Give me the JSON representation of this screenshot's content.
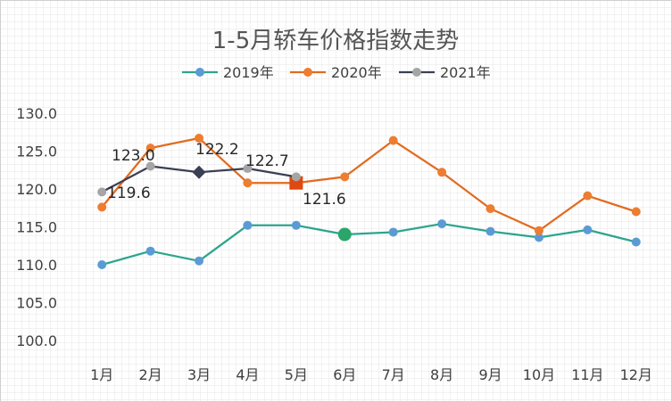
{
  "chart_data": {
    "type": "line",
    "title": "1-5月轿车价格指数走势",
    "categories": [
      "1月",
      "2月",
      "3月",
      "4月",
      "5月",
      "6月",
      "7月",
      "8月",
      "9月",
      "10月",
      "11月",
      "12月"
    ],
    "ylim": [
      100,
      130
    ],
    "yticks": [
      "100.0",
      "105.0",
      "110.0",
      "115.0",
      "120.0",
      "125.0",
      "130.0"
    ],
    "grid": true,
    "legend_position": "top",
    "series": [
      {
        "name": "2019年",
        "color": "#2ca58d",
        "marker_color": "#5b9bd5",
        "values": [
          110.0,
          111.8,
          110.5,
          115.2,
          115.2,
          114.0,
          114.3,
          115.4,
          114.4,
          113.6,
          114.6,
          113.0
        ]
      },
      {
        "name": "2020年",
        "color": "#e26b20",
        "marker_color": "#ed7d31",
        "values": [
          117.6,
          125.4,
          126.7,
          120.8,
          120.8,
          121.6,
          126.4,
          122.2,
          117.4,
          114.5,
          119.1,
          117.0
        ]
      },
      {
        "name": "2021年",
        "color": "#3b3f54",
        "marker_color": "#a5a5a5",
        "values": [
          119.6,
          123.0,
          122.2,
          122.7,
          121.6,
          null,
          null,
          null,
          null,
          null,
          null,
          null
        ]
      }
    ],
    "annotations": [
      "123.0",
      "119.6",
      "122.2",
      "122.7",
      "121.6"
    ]
  }
}
